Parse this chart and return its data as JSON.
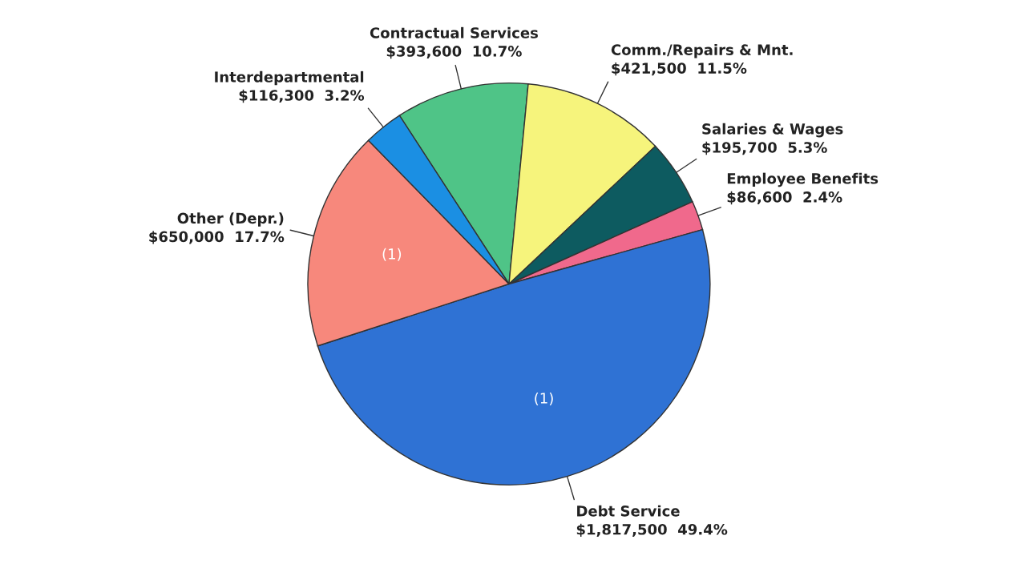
{
  "chart_data": {
    "type": "pie",
    "categories": [
      "Contractual Services",
      "Comm./Repairs & Mnt.",
      "Salaries & Wages",
      "Employee Benefits",
      "Debt Service",
      "Other (Depr.)",
      "Interdepartmental"
    ],
    "values": [
      393600,
      421500,
      195700,
      86600,
      1817500,
      650000,
      116300
    ],
    "value_labels": [
      "$393,600  10.7%",
      "$421,500  11.5%",
      "$195,700  5.3%",
      "$86,600  2.4%",
      "$1,817,500  49.4%",
      "$650,000  17.7%",
      "$116,300  3.2%"
    ],
    "colors": [
      "#4fc487",
      "#f6f47c",
      "#0d5b60",
      "#f0698c",
      "#2f72d4",
      "#f7887c",
      "#1b8fe3"
    ],
    "annotations": [
      {
        "text": "(1)",
        "x": "Other (Depr.)"
      },
      {
        "text": "(1)",
        "x": "Debt Service"
      }
    ],
    "legend": false
  }
}
